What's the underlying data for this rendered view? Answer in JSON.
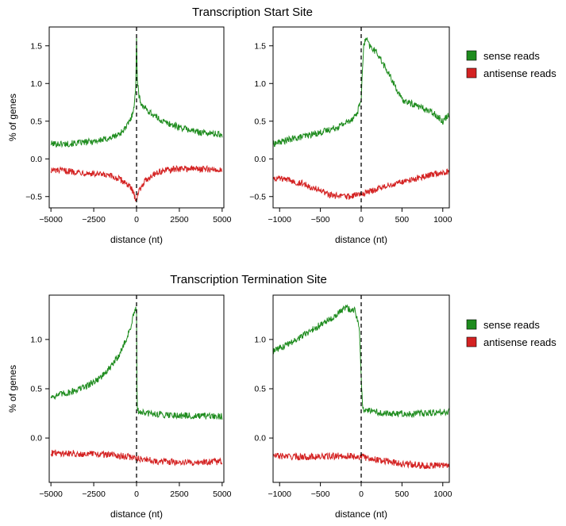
{
  "figure": {
    "sections": [
      {
        "title": "Transcription Start Site",
        "legend": {
          "entries": [
            {
              "label": "sense reads",
              "color": "#1e8c1e"
            },
            {
              "label": "antisense reads",
              "color": "#d42222"
            }
          ]
        }
      },
      {
        "title": "Transcription Termination Site",
        "legend": {
          "entries": [
            {
              "label": "sense reads",
              "color": "#1e8c1e"
            },
            {
              "label": "antisense reads",
              "color": "#d42222"
            }
          ]
        }
      }
    ]
  },
  "chart_data": [
    {
      "type": "line",
      "section": "Transcription Start Site",
      "xlabel": "distance (nt)",
      "ylabel": "% of genes",
      "xlim": [
        -5100,
        5100
      ],
      "ylim": [
        -0.65,
        1.75
      ],
      "xticks": [
        -5000,
        -2500,
        0,
        2500,
        5000
      ],
      "xtick_labels": [
        "−5000",
        "−2500",
        "0",
        "2500",
        "5000"
      ],
      "yticks": [
        -0.5,
        0.0,
        0.5,
        1.0,
        1.5
      ],
      "ytick_labels": [
        "−0.5",
        "0.0",
        "0.5",
        "1.0",
        "1.5"
      ],
      "vline_x": 0,
      "series": [
        {
          "name": "sense reads",
          "color": "#1e8c1e",
          "x": [
            -5000,
            -4000,
            -3000,
            -2000,
            -1500,
            -1000,
            -600,
            -300,
            -150,
            -50,
            0,
            50,
            150,
            300,
            600,
            1000,
            1500,
            2500,
            3500,
            5000
          ],
          "y": [
            0.2,
            0.2,
            0.22,
            0.25,
            0.28,
            0.33,
            0.42,
            0.55,
            0.7,
            0.9,
            1.6,
            1.05,
            0.82,
            0.72,
            0.65,
            0.58,
            0.5,
            0.42,
            0.36,
            0.32
          ]
        },
        {
          "name": "antisense reads",
          "color": "#d42222",
          "x": [
            -5000,
            -3500,
            -2500,
            -1500,
            -1000,
            -600,
            -300,
            -100,
            0,
            100,
            300,
            600,
            1000,
            1500,
            2500,
            3500,
            5000
          ],
          "y": [
            -0.15,
            -0.17,
            -0.2,
            -0.23,
            -0.27,
            -0.32,
            -0.4,
            -0.5,
            -0.53,
            -0.45,
            -0.35,
            -0.27,
            -0.2,
            -0.16,
            -0.13,
            -0.13,
            -0.15
          ]
        }
      ]
    },
    {
      "type": "line",
      "section": "Transcription Start Site",
      "xlabel": "distance (nt)",
      "ylabel": "",
      "xlim": [
        -1080,
        1080
      ],
      "ylim": [
        -0.65,
        1.75
      ],
      "xticks": [
        -1000,
        -500,
        0,
        500,
        1000
      ],
      "xtick_labels": [
        "−1000",
        "−500",
        "0",
        "500",
        "1000"
      ],
      "yticks": [
        -0.5,
        0.0,
        0.5,
        1.0,
        1.5
      ],
      "ytick_labels": [
        "−0.5",
        "0.0",
        "0.5",
        "1.0",
        "1.5"
      ],
      "vline_x": 0,
      "series": [
        {
          "name": "sense reads",
          "color": "#1e8c1e",
          "x": [
            -1080,
            -900,
            -700,
            -500,
            -300,
            -150,
            -50,
            0,
            30,
            60,
            100,
            200,
            300,
            400,
            500,
            700,
            900,
            1000,
            1080
          ],
          "y": [
            0.2,
            0.25,
            0.3,
            0.35,
            0.42,
            0.5,
            0.6,
            0.8,
            1.5,
            1.6,
            1.5,
            1.4,
            1.2,
            1.0,
            0.78,
            0.7,
            0.6,
            0.5,
            0.6
          ]
        },
        {
          "name": "antisense reads",
          "color": "#d42222",
          "x": [
            -1080,
            -900,
            -700,
            -500,
            -400,
            -200,
            0,
            200,
            400,
            600,
            800,
            1000,
            1080
          ],
          "y": [
            -0.25,
            -0.28,
            -0.33,
            -0.42,
            -0.48,
            -0.5,
            -0.47,
            -0.4,
            -0.33,
            -0.28,
            -0.22,
            -0.18,
            -0.17
          ]
        }
      ]
    },
    {
      "type": "line",
      "section": "Transcription Termination Site",
      "xlabel": "distance (nt)",
      "ylabel": "% of genes",
      "xlim": [
        -5100,
        5100
      ],
      "ylim": [
        -0.45,
        1.45
      ],
      "xticks": [
        -5000,
        -2500,
        0,
        2500,
        5000
      ],
      "xtick_labels": [
        "−5000",
        "−2500",
        "0",
        "2500",
        "5000"
      ],
      "yticks": [
        0.0,
        0.5,
        1.0
      ],
      "ytick_labels": [
        "0.0",
        "0.5",
        "1.0"
      ],
      "vline_x": 0,
      "series": [
        {
          "name": "sense reads",
          "color": "#1e8c1e",
          "x": [
            -5000,
            -4000,
            -3000,
            -2500,
            -2000,
            -1500,
            -1000,
            -600,
            -300,
            -100,
            0,
            30,
            500,
            1500,
            2500,
            3500,
            5000
          ],
          "y": [
            0.42,
            0.46,
            0.52,
            0.57,
            0.63,
            0.72,
            0.85,
            1.0,
            1.15,
            1.3,
            1.3,
            0.28,
            0.25,
            0.24,
            0.23,
            0.22,
            0.22
          ]
        },
        {
          "name": "antisense reads",
          "color": "#d42222",
          "x": [
            -5000,
            -3000,
            -1500,
            -500,
            0,
            500,
            1500,
            3000,
            5000
          ],
          "y": [
            -0.15,
            -0.16,
            -0.17,
            -0.19,
            -0.2,
            -0.22,
            -0.24,
            -0.25,
            -0.24
          ]
        }
      ]
    },
    {
      "type": "line",
      "section": "Transcription Termination Site",
      "xlabel": "distance (nt)",
      "ylabel": "",
      "xlim": [
        -1080,
        1080
      ],
      "ylim": [
        -0.45,
        1.45
      ],
      "xticks": [
        -1000,
        -500,
        0,
        500,
        1000
      ],
      "xtick_labels": [
        "−1000",
        "−500",
        "0",
        "500",
        "1000"
      ],
      "yticks": [
        0.0,
        0.5,
        1.0
      ],
      "ytick_labels": [
        "0.0",
        "0.5",
        "1.0"
      ],
      "vline_x": 0,
      "series": [
        {
          "name": "sense reads",
          "color": "#1e8c1e",
          "x": [
            -1080,
            -900,
            -700,
            -500,
            -300,
            -200,
            -80,
            -20,
            0,
            20,
            60,
            300,
            600,
            900,
            1080
          ],
          "y": [
            0.88,
            0.95,
            1.05,
            1.15,
            1.25,
            1.32,
            1.3,
            1.1,
            0.6,
            0.3,
            0.28,
            0.25,
            0.24,
            0.26,
            0.27
          ]
        },
        {
          "name": "antisense reads",
          "color": "#d42222",
          "x": [
            -1080,
            -800,
            -500,
            -200,
            0,
            200,
            500,
            800,
            1080
          ],
          "y": [
            -0.18,
            -0.19,
            -0.19,
            -0.18,
            -0.19,
            -0.22,
            -0.26,
            -0.28,
            -0.27
          ]
        }
      ]
    }
  ]
}
